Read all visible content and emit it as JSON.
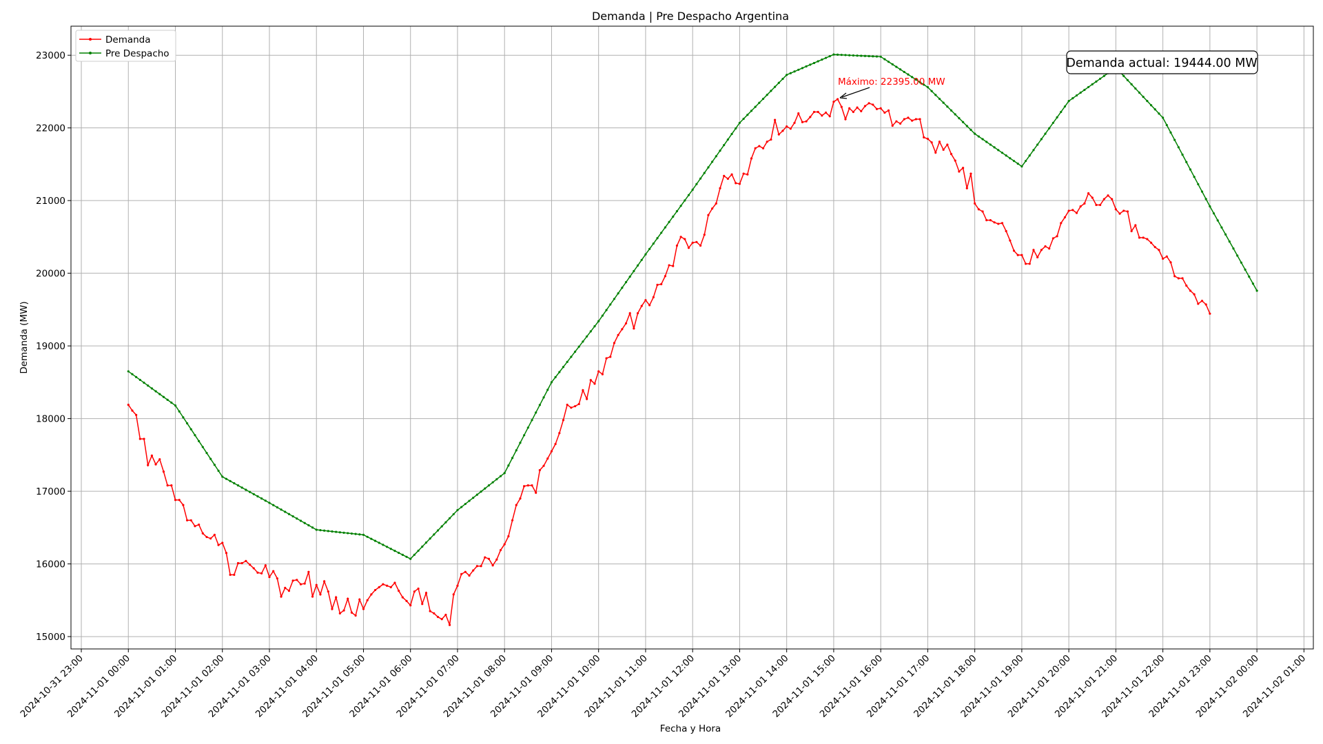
{
  "chart_data": {
    "type": "line",
    "title": "Demanda | Pre Despacho Argentina",
    "xlabel": "Fecha y Hora",
    "ylabel": "Demanda (MW)",
    "ylim": [
      14830,
      23400
    ],
    "xlim_hours": [
      -1.22,
      25.2
    ],
    "grid": true,
    "legend_position": "top-left",
    "x_tick_labels": [
      "2024-10-31 23:00",
      "2024-11-01 00:00",
      "2024-11-01 01:00",
      "2024-11-01 02:00",
      "2024-11-01 03:00",
      "2024-11-01 04:00",
      "2024-11-01 05:00",
      "2024-11-01 06:00",
      "2024-11-01 07:00",
      "2024-11-01 08:00",
      "2024-11-01 09:00",
      "2024-11-01 10:00",
      "2024-11-01 11:00",
      "2024-11-01 12:00",
      "2024-11-01 13:00",
      "2024-11-01 14:00",
      "2024-11-01 15:00",
      "2024-11-01 16:00",
      "2024-11-01 17:00",
      "2024-11-01 18:00",
      "2024-11-01 19:00",
      "2024-11-01 20:00",
      "2024-11-01 21:00",
      "2024-11-01 22:00",
      "2024-11-01 23:00",
      "2024-11-02 00:00",
      "2024-11-02 01:00"
    ],
    "y_ticks": [
      15000,
      16000,
      17000,
      18000,
      19000,
      20000,
      21000,
      22000,
      23000
    ],
    "series": [
      {
        "name": "Demanda",
        "color": "#ff0000",
        "step_minutes": 5,
        "start": "2024-11-01 00:00",
        "values": [
          18190,
          18110,
          18050,
          17720,
          17720,
          17360,
          17490,
          17370,
          17440,
          17270,
          17080,
          17080,
          16880,
          16880,
          16810,
          16600,
          16600,
          16520,
          16540,
          16420,
          16370,
          16350,
          16400,
          16260,
          16290,
          16150,
          15850,
          15850,
          16010,
          16010,
          16040,
          15990,
          15940,
          15880,
          15870,
          15980,
          15820,
          15900,
          15800,
          15550,
          15670,
          15630,
          15770,
          15780,
          15720,
          15730,
          15890,
          15550,
          15710,
          15580,
          15760,
          15620,
          15380,
          15540,
          15320,
          15360,
          15520,
          15330,
          15290,
          15510,
          15380,
          15500,
          15580,
          15640,
          15680,
          15720,
          15700,
          15680,
          15740,
          15630,
          15540,
          15490,
          15430,
          15620,
          15660,
          15450,
          15600,
          15350,
          15320,
          15270,
          15240,
          15300,
          15160,
          15580,
          15700,
          15860,
          15890,
          15840,
          15910,
          15970,
          15970,
          16090,
          16070,
          15980,
          16060,
          16190,
          16270,
          16380,
          16600,
          16810,
          16900,
          17070,
          17080,
          17080,
          16980,
          17290,
          17350,
          17450,
          17550,
          17650,
          17800,
          17980,
          18190,
          18150,
          18170,
          18200,
          18390,
          18270,
          18530,
          18480,
          18650,
          18610,
          18830,
          18850,
          19040,
          19150,
          19230,
          19310,
          19450,
          19240,
          19450,
          19550,
          19630,
          19560,
          19670,
          19840,
          19850,
          19960,
          20110,
          20100,
          20380,
          20500,
          20470,
          20350,
          20420,
          20430,
          20380,
          20530,
          20800,
          20890,
          20960,
          21170,
          21340,
          21300,
          21360,
          21240,
          21230,
          21370,
          21360,
          21580,
          21720,
          21750,
          21720,
          21810,
          21840,
          22110,
          21910,
          21960,
          22020,
          21990,
          22070,
          22200,
          22080,
          22090,
          22150,
          22220,
          22220,
          22170,
          22210,
          22160,
          22360,
          22395,
          22290,
          22120,
          22270,
          22220,
          22280,
          22230,
          22300,
          22340,
          22320,
          22260,
          22270,
          22210,
          22240,
          22030,
          22090,
          22060,
          22120,
          22140,
          22100,
          22120,
          22120,
          21870,
          21850,
          21800,
          21660,
          21810,
          21700,
          21770,
          21640,
          21550,
          21400,
          21450,
          21170,
          21370,
          20960,
          20880,
          20850,
          20730,
          20730,
          20700,
          20680,
          20690,
          20580,
          20450,
          20310,
          20250,
          20250,
          20130,
          20130,
          20320,
          20220,
          20320,
          20370,
          20340,
          20480,
          20510,
          20690,
          20770,
          20860,
          20870,
          20830,
          20920,
          20960,
          21100,
          21040,
          20940,
          20940,
          21020,
          21070,
          21020,
          20880,
          20820,
          20860,
          20850,
          20580,
          20660,
          20490,
          20490,
          20470,
          20420,
          20360,
          20320,
          20200,
          20230,
          20150,
          19960,
          19930,
          19930,
          19830,
          19760,
          19710,
          19580,
          19620,
          19570,
          19444
        ]
      },
      {
        "name": "Pre Despacho",
        "color": "#008000",
        "step_minutes": 5,
        "start": "2024-11-01 00:00",
        "hourly_nodes": [
          18650,
          18180,
          17200,
          16840,
          16470,
          16400,
          16070,
          16740,
          17250,
          18500,
          19340,
          20260,
          21150,
          22070,
          22730,
          23010,
          22980,
          22560,
          21920,
          21470,
          22370,
          22830,
          22140,
          20920,
          19760
        ]
      }
    ],
    "annotations": {
      "maximum_label": "Máximo: 22395.00 MW",
      "maximum_value": 22395,
      "maximum_time": "2024-11-01 15:05",
      "current_label": "Demanda actual: 19444.00 MW"
    }
  }
}
